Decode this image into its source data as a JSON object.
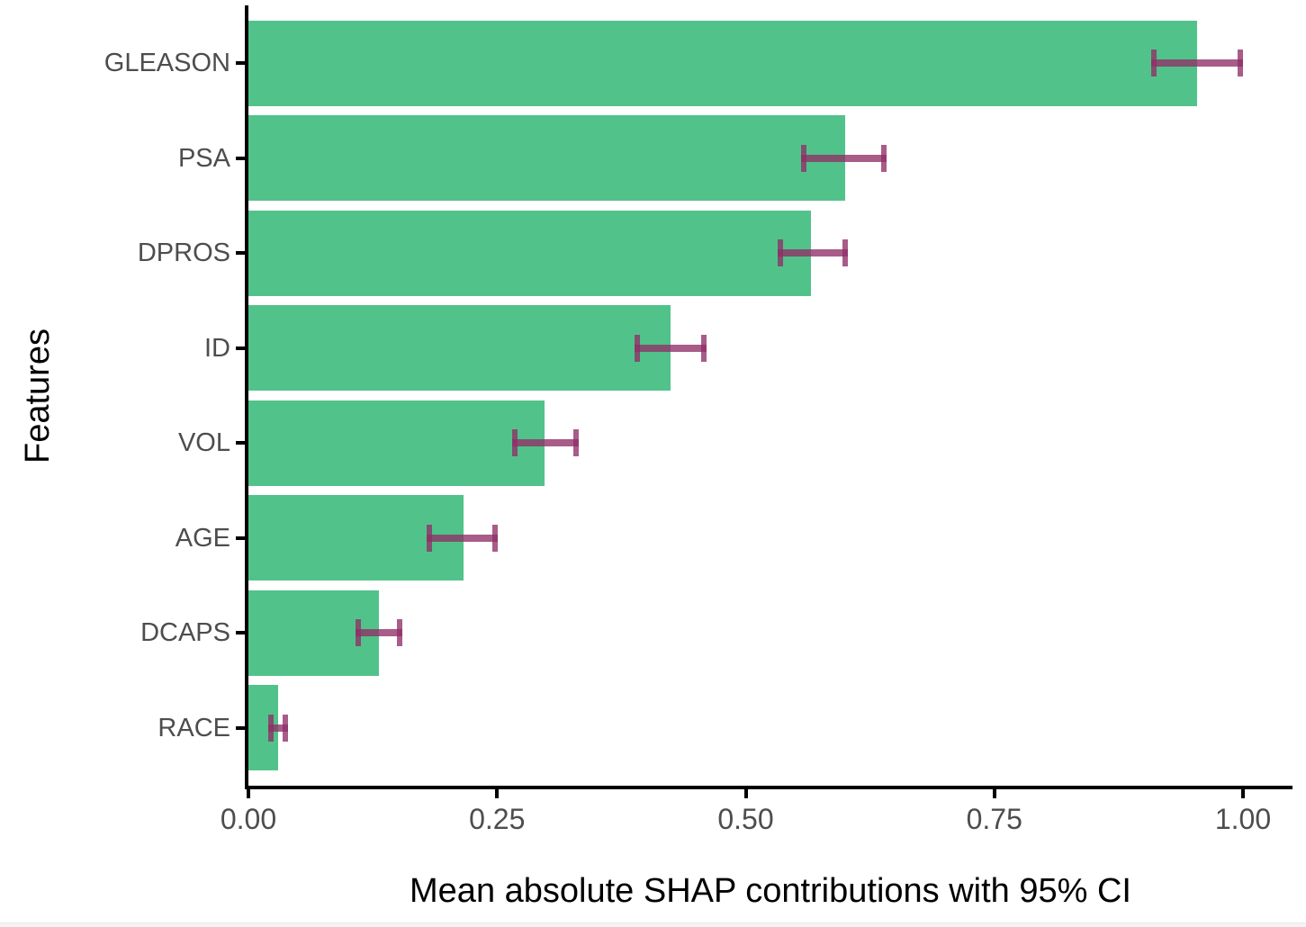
{
  "chart_data": {
    "type": "bar",
    "orientation": "horizontal",
    "xlabel": "Mean absolute SHAP contributions with 95% CI",
    "ylabel": "Features",
    "categories": [
      "GLEASON",
      "PSA",
      "DPROS",
      "ID",
      "VOL",
      "AGE",
      "DCAPS",
      "RACE"
    ],
    "values": [
      0.954,
      0.6,
      0.566,
      0.424,
      0.298,
      0.216,
      0.131,
      0.03
    ],
    "ci_low": [
      0.908,
      0.556,
      0.532,
      0.388,
      0.265,
      0.179,
      0.108,
      0.02
    ],
    "ci_high": [
      1.0,
      0.642,
      0.603,
      0.461,
      0.332,
      0.251,
      0.155,
      0.04
    ],
    "x_tick_labels": [
      "0.00",
      "0.25",
      "0.50",
      "0.75",
      "1.00"
    ],
    "x_tick_values": [
      0,
      0.25,
      0.5,
      0.75,
      1.0
    ],
    "xlim": [
      0,
      1.05
    ],
    "grid": false,
    "legend": null,
    "bar_color": "#52c28b",
    "error_color": "#8f2e66",
    "error_alpha": 0.78,
    "axis_color": "#000000",
    "tick_label_color": "#4d4d4d"
  }
}
